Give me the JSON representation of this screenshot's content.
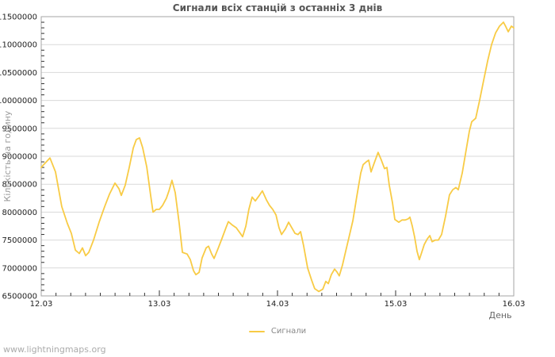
{
  "page": {
    "watermark": "www.lightningmaps.org",
    "background_color": "#ffffff"
  },
  "chart_data": {
    "type": "line",
    "title": "Сигнали всіх станцій з останніх 3 днів",
    "xlabel": "День",
    "ylabel": "Кількість на годину",
    "grid": "horizontal-only",
    "xlim": [
      0,
      4
    ],
    "ylim": [
      6500000,
      11500000
    ],
    "x_tick_values": [
      0,
      1,
      2,
      3,
      4
    ],
    "x_tick_labels": [
      "12.03",
      "13.03",
      "14.03",
      "15.03",
      "16.03"
    ],
    "x_minor_step": 0.125,
    "y_tick_step": 500000,
    "y_minor_step": 100000,
    "y_tick_labels": [
      "11500000",
      "11000000",
      "10500000",
      "10000000",
      "9500000",
      "9000000",
      "8500000",
      "8000000",
      "7500000",
      "7000000",
      "6500000"
    ],
    "legend": {
      "position": "bottom-center",
      "entries": [
        {
          "label": "Сигнали",
          "color": "#F8CB45"
        }
      ]
    },
    "colors": {
      "line": "#F8CB45",
      "grid": "#d9d9d9",
      "border": "#a6a6a6",
      "tick": "#333333",
      "tick_label": "#222222",
      "title": "#555555"
    },
    "series": [
      {
        "name": "Сигнали",
        "color": "#F8CB45",
        "points": [
          [
            0,
            8800000
          ],
          [
            0.02,
            8850000
          ],
          [
            0.074,
            8970000
          ],
          [
            0.121,
            8720000
          ],
          [
            0.174,
            8100000
          ],
          [
            0.221,
            7800000
          ],
          [
            0.255,
            7620000
          ],
          [
            0.289,
            7320000
          ],
          [
            0.322,
            7260000
          ],
          [
            0.349,
            7360000
          ],
          [
            0.376,
            7220000
          ],
          [
            0.403,
            7280000
          ],
          [
            0.443,
            7500000
          ],
          [
            0.49,
            7820000
          ],
          [
            0.537,
            8100000
          ],
          [
            0.577,
            8320000
          ],
          [
            0.624,
            8520000
          ],
          [
            0.658,
            8420000
          ],
          [
            0.678,
            8300000
          ],
          [
            0.711,
            8480000
          ],
          [
            0.745,
            8800000
          ],
          [
            0.779,
            9150000
          ],
          [
            0.805,
            9300000
          ],
          [
            0.832,
            9330000
          ],
          [
            0.859,
            9150000
          ],
          [
            0.893,
            8810000
          ],
          [
            0.926,
            8300000
          ],
          [
            0.946,
            8000000
          ],
          [
            0.973,
            8050000
          ],
          [
            1,
            8050000
          ],
          [
            1.027,
            8120000
          ],
          [
            1.06,
            8250000
          ],
          [
            1.081,
            8380000
          ],
          [
            1.107,
            8570000
          ],
          [
            1.134,
            8350000
          ],
          [
            1.168,
            7800000
          ],
          [
            1.195,
            7280000
          ],
          [
            1.235,
            7250000
          ],
          [
            1.262,
            7150000
          ],
          [
            1.289,
            6950000
          ],
          [
            1.309,
            6880000
          ],
          [
            1.336,
            6920000
          ],
          [
            1.362,
            7180000
          ],
          [
            1.396,
            7360000
          ],
          [
            1.416,
            7390000
          ],
          [
            1.443,
            7250000
          ],
          [
            1.463,
            7170000
          ],
          [
            1.497,
            7350000
          ],
          [
            1.53,
            7530000
          ],
          [
            1.564,
            7720000
          ],
          [
            1.584,
            7830000
          ],
          [
            1.617,
            7770000
          ],
          [
            1.651,
            7720000
          ],
          [
            1.685,
            7620000
          ],
          [
            1.705,
            7560000
          ],
          [
            1.732,
            7750000
          ],
          [
            1.758,
            8050000
          ],
          [
            1.785,
            8270000
          ],
          [
            1.812,
            8200000
          ],
          [
            1.846,
            8300000
          ],
          [
            1.872,
            8380000
          ],
          [
            1.906,
            8220000
          ],
          [
            1.933,
            8120000
          ],
          [
            1.96,
            8050000
          ],
          [
            1.987,
            7950000
          ],
          [
            2.013,
            7720000
          ],
          [
            2.034,
            7600000
          ],
          [
            2.067,
            7700000
          ],
          [
            2.094,
            7820000
          ],
          [
            2.121,
            7720000
          ],
          [
            2.148,
            7620000
          ],
          [
            2.174,
            7600000
          ],
          [
            2.195,
            7650000
          ],
          [
            2.221,
            7400000
          ],
          [
            2.255,
            7000000
          ],
          [
            2.289,
            6780000
          ],
          [
            2.315,
            6630000
          ],
          [
            2.349,
            6580000
          ],
          [
            2.383,
            6620000
          ],
          [
            2.409,
            6760000
          ],
          [
            2.43,
            6720000
          ],
          [
            2.456,
            6880000
          ],
          [
            2.483,
            6980000
          ],
          [
            2.503,
            6930000
          ],
          [
            2.523,
            6860000
          ],
          [
            2.55,
            7050000
          ],
          [
            2.577,
            7300000
          ],
          [
            2.611,
            7600000
          ],
          [
            2.638,
            7850000
          ],
          [
            2.671,
            8280000
          ],
          [
            2.705,
            8700000
          ],
          [
            2.725,
            8850000
          ],
          [
            2.752,
            8900000
          ],
          [
            2.772,
            8930000
          ],
          [
            2.792,
            8720000
          ],
          [
            2.819,
            8880000
          ],
          [
            2.852,
            9070000
          ],
          [
            2.879,
            8930000
          ],
          [
            2.906,
            8780000
          ],
          [
            2.926,
            8800000
          ],
          [
            2.946,
            8480000
          ],
          [
            2.973,
            8170000
          ],
          [
            2.993,
            7870000
          ],
          [
            3.027,
            7820000
          ],
          [
            3.054,
            7860000
          ],
          [
            3.081,
            7860000
          ],
          [
            3.107,
            7880000
          ],
          [
            3.121,
            7910000
          ],
          [
            3.141,
            7750000
          ],
          [
            3.161,
            7550000
          ],
          [
            3.181,
            7300000
          ],
          [
            3.201,
            7150000
          ],
          [
            3.221,
            7280000
          ],
          [
            3.242,
            7420000
          ],
          [
            3.268,
            7520000
          ],
          [
            3.289,
            7580000
          ],
          [
            3.309,
            7470000
          ],
          [
            3.336,
            7500000
          ],
          [
            3.362,
            7500000
          ],
          [
            3.389,
            7600000
          ],
          [
            3.423,
            7930000
          ],
          [
            3.456,
            8310000
          ],
          [
            3.483,
            8400000
          ],
          [
            3.51,
            8440000
          ],
          [
            3.53,
            8400000
          ],
          [
            3.564,
            8700000
          ],
          [
            3.597,
            9120000
          ],
          [
            3.624,
            9450000
          ],
          [
            3.644,
            9620000
          ],
          [
            3.678,
            9680000
          ],
          [
            3.711,
            10000000
          ],
          [
            3.745,
            10360000
          ],
          [
            3.779,
            10710000
          ],
          [
            3.812,
            11000000
          ],
          [
            3.846,
            11210000
          ],
          [
            3.879,
            11330000
          ],
          [
            3.913,
            11400000
          ],
          [
            3.933,
            11320000
          ],
          [
            3.953,
            11230000
          ],
          [
            3.98,
            11330000
          ],
          [
            4,
            11300000
          ]
        ]
      }
    ]
  }
}
